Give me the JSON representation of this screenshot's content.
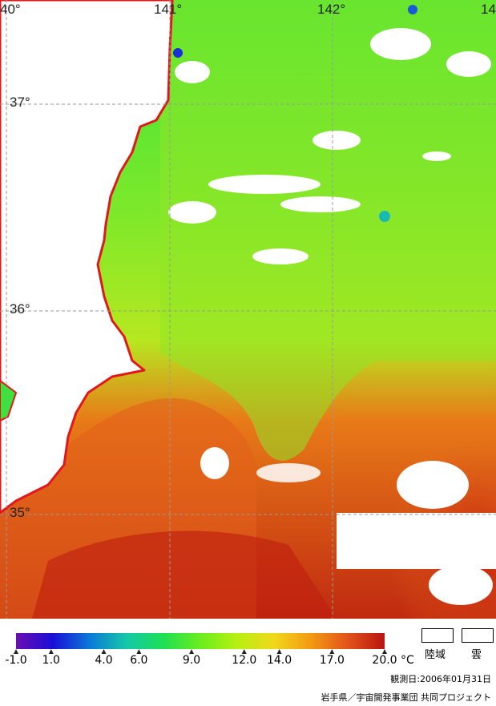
{
  "map": {
    "latitude_labels": [
      {
        "text": "37°",
        "lat": 37
      },
      {
        "text": "36°",
        "lat": 36
      },
      {
        "text": "35°",
        "lat": 35
      }
    ],
    "longitude_labels": [
      {
        "text": "40°",
        "lon": 140
      },
      {
        "text": "141°",
        "lon": 141
      },
      {
        "text": "142°",
        "lon": 142
      },
      {
        "text": "14",
        "lon": 143
      }
    ],
    "colors": {
      "land": "#ffffff",
      "coastline": "#e3171b",
      "grid": "#9a9a9a"
    }
  },
  "legend": {
    "ticks": [
      "-1.0",
      "1.0",
      "4.0",
      "6.0",
      "9.0",
      "12.0",
      "14.0",
      "17.0",
      "20.0"
    ],
    "tick_values": [
      -1,
      1,
      4,
      6,
      9,
      12,
      14,
      17,
      20
    ],
    "unit": "°C",
    "gradient": [
      "#6a0fb0",
      "#1a0fd6",
      "#0a7ad6",
      "#15c8a8",
      "#1ee052",
      "#6aee1c",
      "#b8ef12",
      "#f0d81a",
      "#f39a12",
      "#e2531a",
      "#b81410"
    ],
    "land_label": "陸域",
    "cloud_label": "雲"
  },
  "footer": {
    "observation_date": "観測日:2006年01月31日",
    "credit": "岩手県／宇宙開発事業団 共同プロジェクト"
  }
}
